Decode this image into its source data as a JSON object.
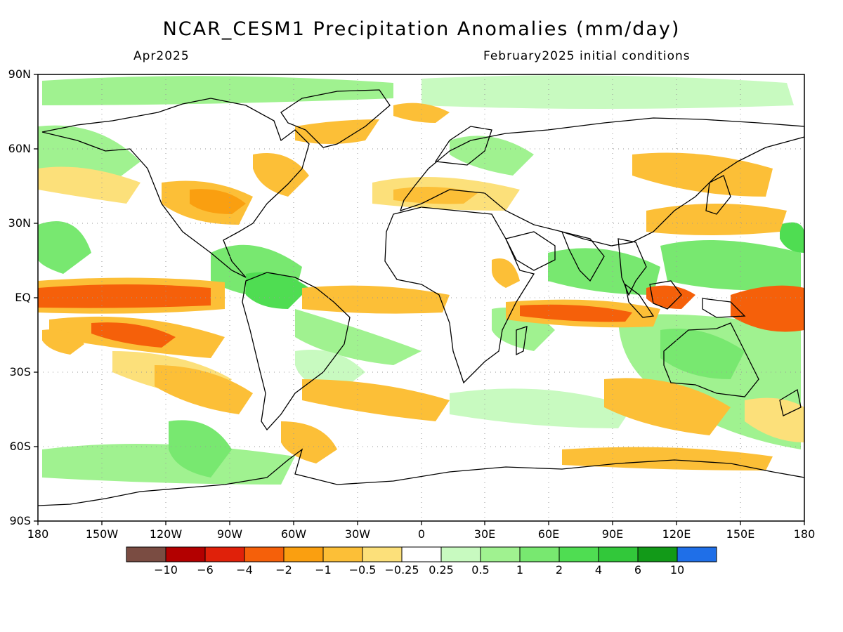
{
  "header": {
    "title": "NCAR_CESM1 Precipitation Anomalies (mm/day)",
    "left_subtitle": "Apr2025",
    "right_subtitle": "February2025 initial conditions"
  },
  "axes": {
    "lat_labels": [
      "90N",
      "60N",
      "30N",
      "EQ",
      "30S",
      "60S",
      "90S"
    ],
    "lon_labels": [
      "180",
      "150W",
      "120W",
      "90W",
      "60W",
      "30W",
      "0",
      "30E",
      "60E",
      "90E",
      "120E",
      "150E",
      "180"
    ]
  },
  "colorbar": {
    "colors": [
      "#7a4c42",
      "#b30000",
      "#e0210a",
      "#f5600a",
      "#fa9f10",
      "#fcbf37",
      "#fce07a",
      "#ffffff",
      "#c8fac0",
      "#a0f290",
      "#78e870",
      "#4fdd52",
      "#32c83a",
      "#129a18",
      "#1f6fe8"
    ],
    "labels": [
      "−10",
      "−6",
      "−4",
      "−2",
      "−1",
      "−0.5",
      "−0.25",
      "0.25",
      "0.5",
      "1",
      "2",
      "4",
      "6",
      "10"
    ]
  },
  "palette": {
    "dry_light": "#fce07a",
    "dry_mid": "#fcbf37",
    "dry_strong": "#f5600a",
    "wet_light": "#c8fac0",
    "wet_mid": "#78e870",
    "wet_strong": "#32c83a",
    "coast": "#000000"
  }
}
